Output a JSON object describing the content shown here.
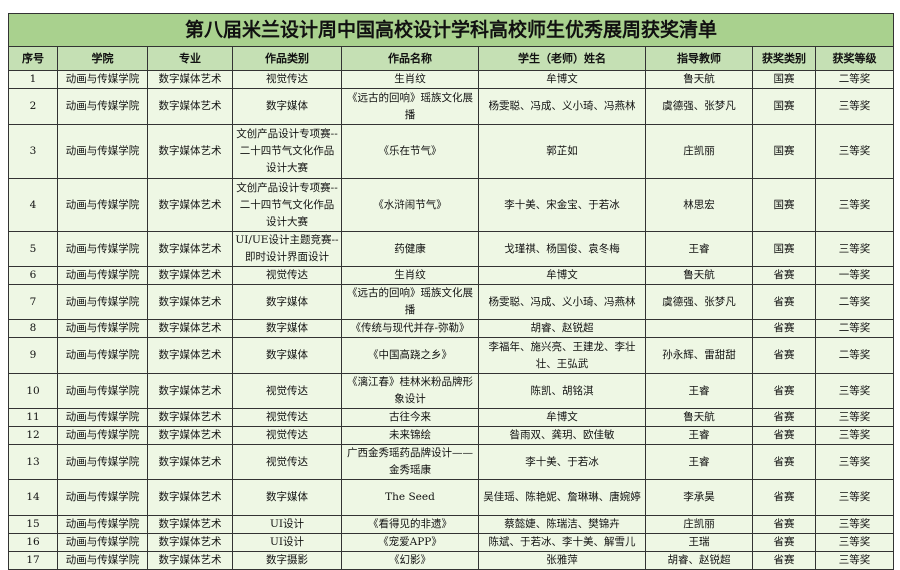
{
  "title": "第八届米兰设计周中国高校设计学科高校师生优秀展周获奖清单",
  "colors": {
    "title_bg": "#a9d18e",
    "header_bg": "#c5e0b4",
    "row_bg": "#eef7e4"
  },
  "headers": [
    "序号",
    "学院",
    "专业",
    "作品类别",
    "作品名称",
    "学生（老师）姓名",
    "指导教师",
    "获奖类别",
    "获奖等级"
  ],
  "rows": [
    [
      "1",
      "动画与传媒学院",
      "数字媒体艺术",
      "视觉传达",
      "生肖纹",
      "牟博文",
      "鲁天航",
      "国赛",
      "二等奖"
    ],
    [
      "2",
      "动画与传媒学院",
      "数字媒体艺术",
      "数字媒体",
      "《远古的回响》瑶族文化展播",
      "杨雯聪、冯成、义小琦、冯燕林",
      "虞德强、张梦凡",
      "国赛",
      "三等奖"
    ],
    [
      "3",
      "动画与传媒学院",
      "数字媒体艺术",
      "文创产品设计专项赛--二十四节气文化作品设计大赛",
      "《乐在节气》",
      "郭芷如",
      "庄凯丽",
      "国赛",
      "三等奖"
    ],
    [
      "4",
      "动画与传媒学院",
      "数字媒体艺术",
      "文创产品设计专项赛--二十四节气文化作品设计大赛",
      "《水浒闹节气》",
      "李十美、宋金宝、于若冰",
      "林思宏",
      "国赛",
      "三等奖"
    ],
    [
      "5",
      "动画与传媒学院",
      "数字媒体艺术",
      "UI/UE设计主题竞赛--即时设计界面设计",
      "药健康",
      "戈瑾祺、杨国俊、袁冬梅",
      "王睿",
      "国赛",
      "三等奖"
    ],
    [
      "6",
      "动画与传媒学院",
      "数字媒体艺术",
      "视觉传达",
      "生肖纹",
      "牟博文",
      "鲁天航",
      "省赛",
      "一等奖"
    ],
    [
      "7",
      "动画与传媒学院",
      "数字媒体艺术",
      "数字媒体",
      "《远古的回响》瑶族文化展播",
      "杨雯聪、冯成、义小琦、冯燕林",
      "虞德强、张梦凡",
      "省赛",
      "二等奖"
    ],
    [
      "8",
      "动画与传媒学院",
      "数字媒体艺术",
      "数字媒体",
      "《传统与现代并存-弥勒》",
      "胡睿、赵锐超",
      "",
      "省赛",
      "二等奖"
    ],
    [
      "9",
      "动画与传媒学院",
      "数字媒体艺术",
      "数字媒体",
      "《中国高跷之乡》",
      "李福年、施兴亮、王建龙、李壮壮、王弘武",
      "孙永辉、雷甜甜",
      "省赛",
      "二等奖"
    ],
    [
      "10",
      "动画与传媒学院",
      "数字媒体艺术",
      "视觉传达",
      "《漓江春》桂林米粉品牌形象设计",
      "陈凯、胡铭淇",
      "王睿",
      "省赛",
      "三等奖"
    ],
    [
      "11",
      "动画与传媒学院",
      "数字媒体艺术",
      "视觉传达",
      "古往今来",
      "牟博文",
      "鲁天航",
      "省赛",
      "三等奖"
    ],
    [
      "12",
      "动画与传媒学院",
      "数字媒体艺术",
      "视觉传达",
      "未来锦绘",
      "昝雨双、龚玥、欧佳敏",
      "王睿",
      "省赛",
      "三等奖"
    ],
    [
      "13",
      "动画与传媒学院",
      "数字媒体艺术",
      "视觉传达",
      "广西金秀瑶药品牌设计——金秀瑶康",
      "李十美、于若冰",
      "王睿",
      "省赛",
      "三等奖"
    ],
    [
      "14",
      "动画与传媒学院",
      "数字媒体艺术",
      "数字媒体",
      "The Seed",
      "吴佳瑶、陈艳妮、詹琳琳、唐婉婷",
      "李承昊",
      "省赛",
      "三等奖"
    ],
    [
      "15",
      "动画与传媒学院",
      "数字媒体艺术",
      "UI设计",
      "《看得见的非遗》",
      "蔡懿婕、陈瑞洁、樊锦卉",
      "庄凯丽",
      "省赛",
      "三等奖"
    ],
    [
      "16",
      "动画与传媒学院",
      "数字媒体艺术",
      "UI设计",
      "《宠爱APP》",
      "陈斌、于若冰、李十美、解雪儿",
      "王瑞",
      "省赛",
      "三等奖"
    ],
    [
      "17",
      "动画与传媒学院",
      "数字媒体艺术",
      "数字摄影",
      "《幻影》",
      "张雅萍",
      "胡睿、赵锐超",
      "省赛",
      "三等奖"
    ]
  ]
}
